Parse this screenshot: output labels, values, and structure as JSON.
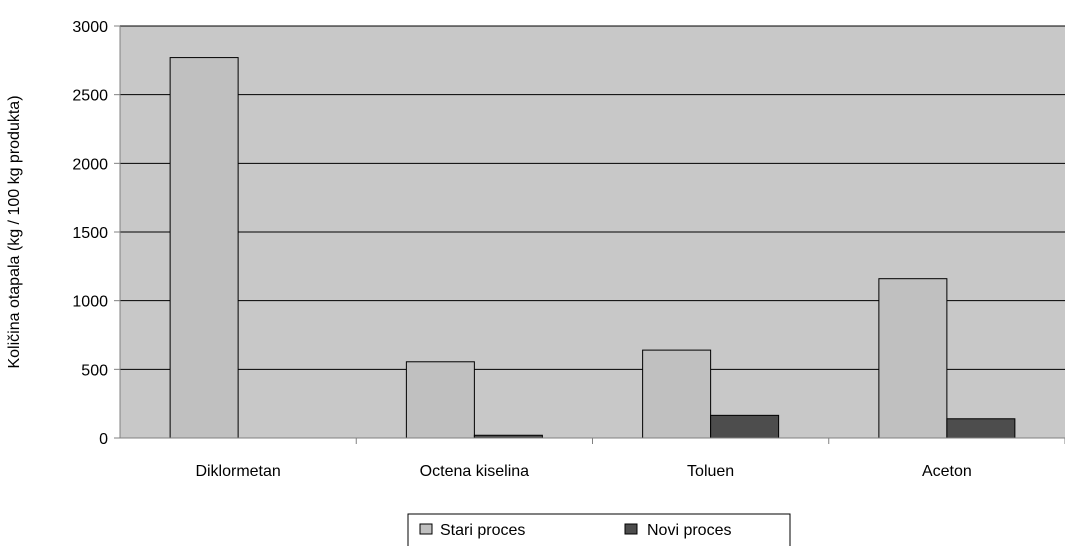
{
  "chart_data": {
    "type": "bar",
    "title": "",
    "xlabel": "",
    "ylabel": "Količina otapala (kg / 100 kg produkta)",
    "categories": [
      "Diklormetan",
      "Octena kiselina",
      "Toluen",
      "Aceton"
    ],
    "series": [
      {
        "name": "Stari proces",
        "values": [
          2770,
          555,
          640,
          1160
        ],
        "color": "#c0c0c0"
      },
      {
        "name": "Novi proces",
        "values": [
          0,
          20,
          165,
          140
        ],
        "color": "#4d4d4d"
      }
    ],
    "ylim": [
      0,
      3000
    ],
    "yticks": [
      0,
      500,
      1000,
      1500,
      2000,
      2500,
      3000
    ],
    "grid": true,
    "legend_position": "bottom",
    "plot_background": "#c8c8c8"
  }
}
